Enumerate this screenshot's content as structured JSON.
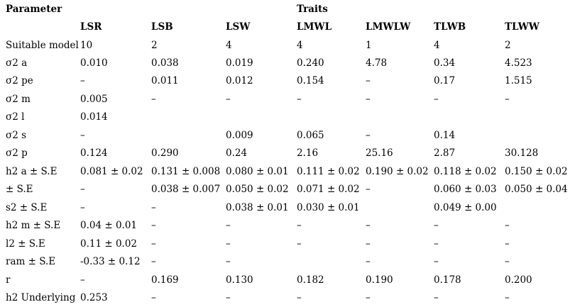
{
  "colors": {
    "text": "#000000",
    "background": "#ffffff"
  },
  "table": {
    "parameter_label": "Parameter",
    "traits_label": "Traits",
    "trait_columns": [
      "LSR",
      "LSB",
      "LSW",
      "LMWL",
      "LMWLW",
      "TLWB",
      "TLWW"
    ],
    "rows": [
      {
        "label": "Suitable model",
        "values": [
          "10",
          "2",
          "4",
          "4",
          "1",
          "4",
          "2"
        ]
      },
      {
        "label": "σ2 a",
        "values": [
          "0.010",
          "0.038",
          "0.019",
          "0.240",
          "4.78",
          "0.34",
          "4.523"
        ]
      },
      {
        "label": "σ2 pe",
        "values": [
          "–",
          "0.011",
          "0.012",
          "0.154",
          "–",
          "0.17",
          "1.515"
        ]
      },
      {
        "label": "σ2 m",
        "values": [
          "0.005",
          "–",
          "–",
          "–",
          "–",
          "–",
          "–"
        ]
      },
      {
        "label": "σ2 l",
        "values": [
          "0.014",
          "",
          "",
          "",
          "",
          "",
          ""
        ]
      },
      {
        "label": "σ2 s",
        "values": [
          "–",
          "",
          "0.009",
          "0.065",
          "–",
          "0.14",
          ""
        ]
      },
      {
        "label": "σ2 p",
        "values": [
          "0.124",
          "0.290",
          "0.24",
          "2.16",
          "25.16",
          "2.87",
          "30.128"
        ]
      },
      {
        "label": "h2 a ± S.E",
        "values": [
          "0.081 ± 0.02",
          "0.131 ± 0.008",
          "0.080 ± 0.01",
          "0.111 ± 0.02",
          "0.190 ± 0.02",
          "0.118 ± 0.02",
          "0.150 ± 0.02"
        ]
      },
      {
        "label": "± S.E",
        "values": [
          "–",
          "0.038 ± 0.007",
          "0.050 ± 0.02",
          "0.071 ± 0.02",
          "–",
          "0.060 ± 0.03",
          "0.050 ± 0.04"
        ]
      },
      {
        "label": "s2 ± S.E",
        "values": [
          "–",
          "–",
          "0.038 ± 0.01",
          "0.030 ± 0.01",
          "",
          "0.049 ± 0.00",
          ""
        ]
      },
      {
        "label": "h2 m ± S.E",
        "values": [
          "0.04 ± 0.01",
          "–",
          "–",
          "–",
          "–",
          "–",
          "–"
        ]
      },
      {
        "label": "l2 ± S.E",
        "values": [
          "0.11 ± 0.02",
          "–",
          "–",
          "–",
          "–",
          "–",
          "–"
        ]
      },
      {
        "label": "ram ± S.E",
        "values": [
          "-0.33 ± 0.12",
          "–",
          "–",
          "",
          "–",
          "–",
          "–"
        ]
      },
      {
        "label": "r",
        "values": [
          "–",
          "0.169",
          "0.130",
          "0.182",
          "0.190",
          "0.178",
          "0.200"
        ]
      },
      {
        "label": "h2 Underlying",
        "values": [
          "0.253",
          "–",
          "–",
          "–",
          "–",
          "–",
          "–"
        ]
      }
    ]
  }
}
